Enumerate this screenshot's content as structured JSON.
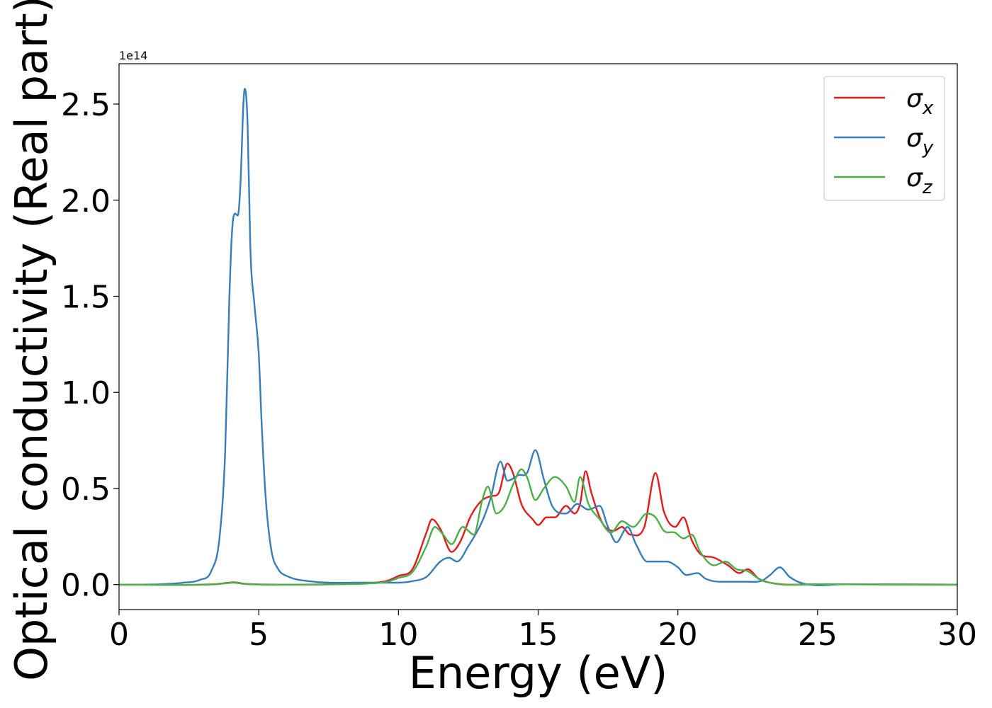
{
  "chart_data": {
    "type": "line",
    "xlabel": "Energy (eV)",
    "ylabel": "Optical conductivity (Real part)",
    "offset_label": "1e14",
    "xlim": [
      0,
      30
    ],
    "ylim": [
      -0.13,
      2.71
    ],
    "x_ticks": [
      0,
      5,
      10,
      15,
      20,
      25,
      30
    ],
    "y_ticks": [
      0.0,
      0.5,
      1.0,
      1.5,
      2.0,
      2.5
    ],
    "y_tick_labels": [
      "0.0",
      "0.5",
      "1.0",
      "1.5",
      "2.0",
      "2.5"
    ],
    "legend_position": "top-right",
    "grid": false,
    "series": [
      {
        "name": "σx",
        "legend_base": "σ",
        "legend_sub": "x",
        "color": "#e41a1c",
        "points": [
          [
            0,
            0
          ],
          [
            3.5,
            0.003
          ],
          [
            4.1,
            0.012
          ],
          [
            4.5,
            0.004
          ],
          [
            5,
            0.001
          ],
          [
            6,
            0
          ],
          [
            8,
            0.003
          ],
          [
            9,
            0.008
          ],
          [
            9.6,
            0.02
          ],
          [
            10,
            0.045
          ],
          [
            10.5,
            0.08
          ],
          [
            11,
            0.27
          ],
          [
            11.2,
            0.34
          ],
          [
            11.5,
            0.29
          ],
          [
            11.9,
            0.17
          ],
          [
            12.2,
            0.22
          ],
          [
            12.6,
            0.36
          ],
          [
            13,
            0.44
          ],
          [
            13.3,
            0.46
          ],
          [
            13.6,
            0.48
          ],
          [
            13.9,
            0.63
          ],
          [
            14.1,
            0.58
          ],
          [
            14.4,
            0.42
          ],
          [
            14.8,
            0.34
          ],
          [
            15,
            0.31
          ],
          [
            15.3,
            0.35
          ],
          [
            15.6,
            0.35
          ],
          [
            16,
            0.41
          ],
          [
            16.3,
            0.37
          ],
          [
            16.5,
            0.42
          ],
          [
            16.7,
            0.59
          ],
          [
            16.9,
            0.48
          ],
          [
            17.3,
            0.32
          ],
          [
            17.7,
            0.28
          ],
          [
            18,
            0.3
          ],
          [
            18.3,
            0.26
          ],
          [
            18.8,
            0.3
          ],
          [
            19.2,
            0.58
          ],
          [
            19.5,
            0.38
          ],
          [
            19.9,
            0.3
          ],
          [
            20.2,
            0.35
          ],
          [
            20.5,
            0.23
          ],
          [
            20.8,
            0.16
          ],
          [
            21.3,
            0.14
          ],
          [
            21.8,
            0.1
          ],
          [
            22.2,
            0.06
          ],
          [
            22.5,
            0.08
          ],
          [
            22.9,
            0.03
          ],
          [
            23.5,
            0.005
          ],
          [
            25,
            0.002
          ],
          [
            30,
            0
          ]
        ]
      },
      {
        "name": "σy",
        "legend_base": "σ",
        "legend_sub": "y",
        "color": "#377eb8",
        "points": [
          [
            0,
            0
          ],
          [
            1.5,
            0.002
          ],
          [
            2.3,
            0.01
          ],
          [
            2.9,
            0.025
          ],
          [
            3.3,
            0.07
          ],
          [
            3.6,
            0.25
          ],
          [
            3.8,
            0.7
          ],
          [
            3.95,
            1.5
          ],
          [
            4.05,
            1.85
          ],
          [
            4.15,
            1.93
          ],
          [
            4.25,
            1.92
          ],
          [
            4.35,
            2.1
          ],
          [
            4.45,
            2.5
          ],
          [
            4.5,
            2.58
          ],
          [
            4.6,
            2.4
          ],
          [
            4.7,
            1.75
          ],
          [
            4.85,
            1.45
          ],
          [
            5,
            1.2
          ],
          [
            5.1,
            0.85
          ],
          [
            5.25,
            0.45
          ],
          [
            5.45,
            0.18
          ],
          [
            5.7,
            0.08
          ],
          [
            6,
            0.045
          ],
          [
            7,
            0.015
          ],
          [
            8.5,
            0.01
          ],
          [
            10,
            0.01
          ],
          [
            10.5,
            0.018
          ],
          [
            11,
            0.04
          ],
          [
            11.5,
            0.12
          ],
          [
            11.8,
            0.14
          ],
          [
            12.1,
            0.12
          ],
          [
            12.5,
            0.2
          ],
          [
            13,
            0.33
          ],
          [
            13.3,
            0.45
          ],
          [
            13.65,
            0.64
          ],
          [
            13.9,
            0.54
          ],
          [
            14.3,
            0.57
          ],
          [
            14.6,
            0.58
          ],
          [
            14.9,
            0.7
          ],
          [
            15.2,
            0.55
          ],
          [
            15.5,
            0.41
          ],
          [
            16,
            0.37
          ],
          [
            16.4,
            0.42
          ],
          [
            16.8,
            0.39
          ],
          [
            17.2,
            0.41
          ],
          [
            17.5,
            0.3
          ],
          [
            17.8,
            0.22
          ],
          [
            18.2,
            0.3
          ],
          [
            18.5,
            0.21
          ],
          [
            18.9,
            0.12
          ],
          [
            19.3,
            0.12
          ],
          [
            19.6,
            0.12
          ],
          [
            20,
            0.09
          ],
          [
            20.3,
            0.05
          ],
          [
            20.7,
            0.06
          ],
          [
            21,
            0.03
          ],
          [
            21.5,
            0.015
          ],
          [
            22.5,
            0.015
          ],
          [
            23,
            0.02
          ],
          [
            23.3,
            0.05
          ],
          [
            23.65,
            0.09
          ],
          [
            24,
            0.04
          ],
          [
            24.5,
            0.005
          ],
          [
            26,
            0.002
          ],
          [
            30,
            0
          ]
        ]
      },
      {
        "name": "σz",
        "legend_base": "σ",
        "legend_sub": "z",
        "color": "#4daf4a",
        "points": [
          [
            0,
            0
          ],
          [
            3.5,
            0.002
          ],
          [
            4.1,
            0.01
          ],
          [
            4.5,
            0.003
          ],
          [
            5,
            0.001
          ],
          [
            6,
            0
          ],
          [
            8,
            0.002
          ],
          [
            9,
            0.006
          ],
          [
            9.6,
            0.015
          ],
          [
            10,
            0.035
          ],
          [
            10.5,
            0.065
          ],
          [
            11,
            0.2
          ],
          [
            11.3,
            0.3
          ],
          [
            11.6,
            0.26
          ],
          [
            11.9,
            0.21
          ],
          [
            12.3,
            0.3
          ],
          [
            12.7,
            0.26
          ],
          [
            13,
            0.44
          ],
          [
            13.2,
            0.51
          ],
          [
            13.5,
            0.37
          ],
          [
            13.8,
            0.41
          ],
          [
            14.1,
            0.52
          ],
          [
            14.4,
            0.6
          ],
          [
            14.6,
            0.56
          ],
          [
            14.9,
            0.44
          ],
          [
            15.2,
            0.5
          ],
          [
            15.6,
            0.56
          ],
          [
            16,
            0.51
          ],
          [
            16.3,
            0.43
          ],
          [
            16.5,
            0.56
          ],
          [
            16.8,
            0.42
          ],
          [
            17.2,
            0.34
          ],
          [
            17.6,
            0.27
          ],
          [
            18,
            0.33
          ],
          [
            18.4,
            0.3
          ],
          [
            18.9,
            0.37
          ],
          [
            19.2,
            0.35
          ],
          [
            19.5,
            0.28
          ],
          [
            19.9,
            0.27
          ],
          [
            20.2,
            0.24
          ],
          [
            20.5,
            0.26
          ],
          [
            20.8,
            0.17
          ],
          [
            21.3,
            0.1
          ],
          [
            21.7,
            0.12
          ],
          [
            22.1,
            0.08
          ],
          [
            22.5,
            0.07
          ],
          [
            22.9,
            0.03
          ],
          [
            23.5,
            0.004
          ],
          [
            25,
            0.002
          ],
          [
            30,
            0
          ]
        ]
      }
    ]
  }
}
